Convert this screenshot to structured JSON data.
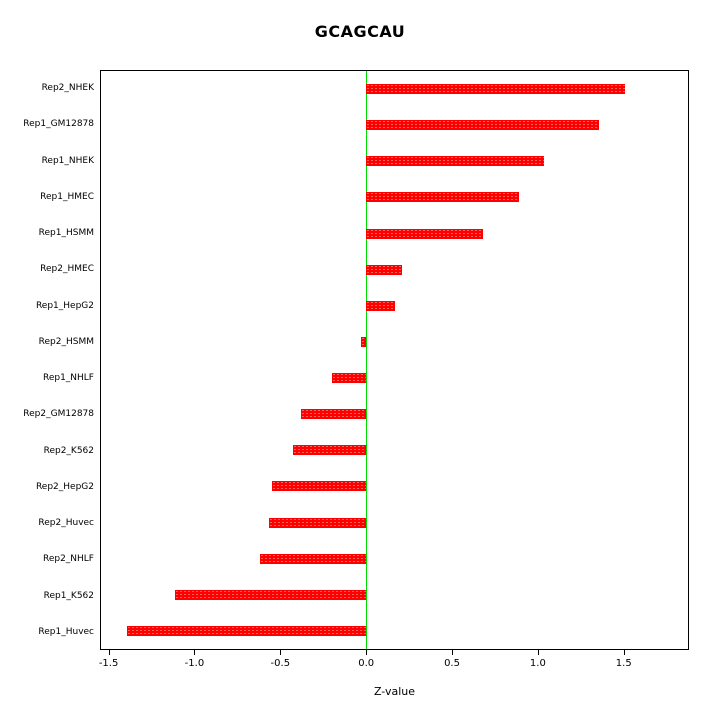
{
  "title": "GCAGCAU",
  "chart_data": {
    "type": "bar",
    "orientation": "horizontal",
    "title": "GCAGCAU",
    "xlabel": "Z-value",
    "ylabel": "",
    "categories": [
      "Rep2_NHEK",
      "Rep1_GM12878",
      "Rep1_NHEK",
      "Rep1_HMEC",
      "Rep1_HSMM",
      "Rep2_HMEC",
      "Rep1_HepG2",
      "Rep2_HSMM",
      "Rep1_NHLF",
      "Rep2_GM12878",
      "Rep2_K562",
      "Rep2_HepG2",
      "Rep2_Huvec",
      "Rep2_NHLF",
      "Rep1_K562",
      "Rep1_Huvec"
    ],
    "values": [
      1.51,
      1.36,
      1.04,
      0.89,
      0.68,
      0.21,
      0.17,
      -0.03,
      -0.2,
      -0.38,
      -0.43,
      -0.55,
      -0.57,
      -0.62,
      -1.12,
      -1.4
    ],
    "xlim": [
      -1.55,
      1.88
    ],
    "x_ticks": [
      -1.5,
      -1.0,
      -0.5,
      0.0,
      0.5,
      1.0,
      1.5
    ],
    "x_tick_labels": [
      "-1.5",
      "-1.0",
      "-0.5",
      "0.0",
      "0.5",
      "1.0",
      "1.5"
    ],
    "bar_color": "#ff0000",
    "zero_line_color": "#00dd00",
    "grid": false,
    "legend": "none"
  }
}
